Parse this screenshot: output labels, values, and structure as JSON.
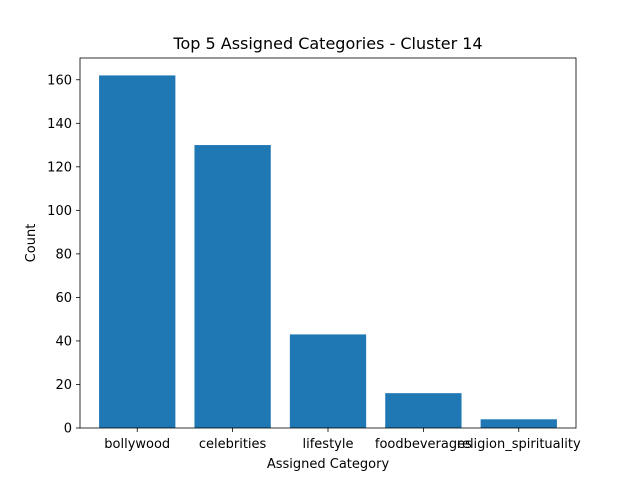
{
  "chart_data": {
    "type": "bar",
    "title": "Top 5 Assigned Categories - Cluster 14",
    "xlabel": "Assigned Category",
    "ylabel": "Count",
    "categories": [
      "bollywood",
      "celebrities",
      "lifestyle",
      "foodbeverages",
      "religion_spirituality"
    ],
    "values": [
      162,
      130,
      43,
      16,
      4
    ],
    "ylim": [
      0,
      170
    ],
    "yticks": [
      0,
      20,
      40,
      60,
      80,
      100,
      120,
      140,
      160
    ],
    "grid": false,
    "legend": "none",
    "bar_color": "#1f77b4"
  }
}
